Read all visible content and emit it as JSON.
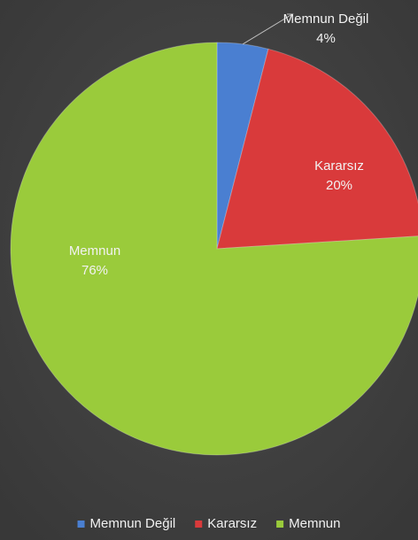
{
  "chart_data": {
    "type": "pie",
    "categories": [
      "Memnun Değil",
      "Kararsız",
      "Memnun"
    ],
    "values": [
      4,
      20,
      76
    ],
    "value_labels": [
      "4%",
      "20%",
      "76%"
    ],
    "colors": [
      "#4a7fd1",
      "#d93a3b",
      "#9acb3b"
    ],
    "legend": "bottom"
  }
}
